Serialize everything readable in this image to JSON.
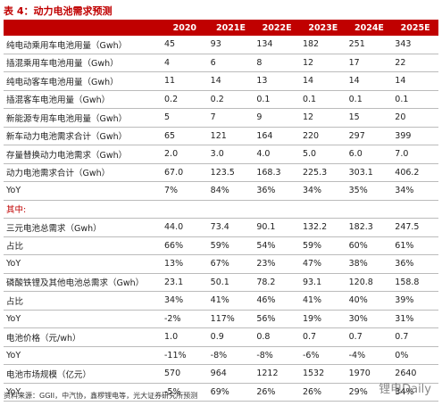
{
  "header": {
    "title": "表 4：动力电池需求预测"
  },
  "table": {
    "columns": [
      "2020",
      "2021E",
      "2022E",
      "2023E",
      "2024E",
      "2025E"
    ],
    "rows": [
      [
        "纯电动乘用车电池用量（Gwh）",
        "45",
        "93",
        "134",
        "182",
        "251",
        "343"
      ],
      [
        "插混乘用车电池用量（Gwh）",
        "4",
        "6",
        "8",
        "12",
        "17",
        "22"
      ],
      [
        "纯电动客车电池用量（Gwh）",
        "11",
        "14",
        "13",
        "14",
        "14",
        "14"
      ],
      [
        "插混客车电池用量（Gwh）",
        "0.2",
        "0.2",
        "0.1",
        "0.1",
        "0.1",
        "0.1"
      ],
      [
        "新能源专用车电池用量（Gwh）",
        "5",
        "7",
        "9",
        "12",
        "15",
        "20"
      ],
      [
        "新车动力电池需求合计（Gwh）",
        "65",
        "121",
        "164",
        "220",
        "297",
        "399"
      ],
      [
        "存量替换动力电池需求（Gwh）",
        "2.0",
        "3.0",
        "4.0",
        "5.0",
        "6.0",
        "7.0"
      ],
      [
        "动力电池需求合计（Gwh）",
        "67.0",
        "123.5",
        "168.3",
        "225.3",
        "303.1",
        "406.2"
      ],
      [
        "YoY",
        "7%",
        "84%",
        "36%",
        "34%",
        "35%",
        "34%"
      ],
      [
        "其中:"
      ],
      [
        "三元电池总需求（Gwh）",
        "44.0",
        "73.4",
        "90.1",
        "132.2",
        "182.3",
        "247.5"
      ],
      [
        "占比",
        "66%",
        "59%",
        "54%",
        "59%",
        "60%",
        "61%"
      ],
      [
        "YoY",
        "13%",
        "67%",
        "23%",
        "47%",
        "38%",
        "36%"
      ],
      [
        "磷酸铁锂及其他电池总需求（Gwh）",
        "23.1",
        "50.1",
        "78.2",
        "93.1",
        "120.8",
        "158.8"
      ],
      [
        "占比",
        "34%",
        "41%",
        "46%",
        "41%",
        "40%",
        "39%"
      ],
      [
        "YoY",
        "-2%",
        "117%",
        "56%",
        "19%",
        "30%",
        "31%"
      ],
      [
        "电池价格（元/wh）",
        "1.0",
        "0.9",
        "0.8",
        "0.7",
        "0.7",
        "0.7"
      ],
      [
        "YoY",
        "-11%",
        "-8%",
        "-8%",
        "-6%",
        "-4%",
        "0%"
      ],
      [
        "电池市场规模（亿元）",
        "570",
        "964",
        "1212",
        "1532",
        "1970",
        "2640"
      ],
      [
        "YoY",
        "-5%",
        "69%",
        "26%",
        "26%",
        "29%",
        "34%"
      ]
    ]
  },
  "footer": {
    "source": "资料来源：GGII，中汽协，鑫椤锂电等，光大证券研究所预测",
    "watermark": "锂电Daily"
  }
}
